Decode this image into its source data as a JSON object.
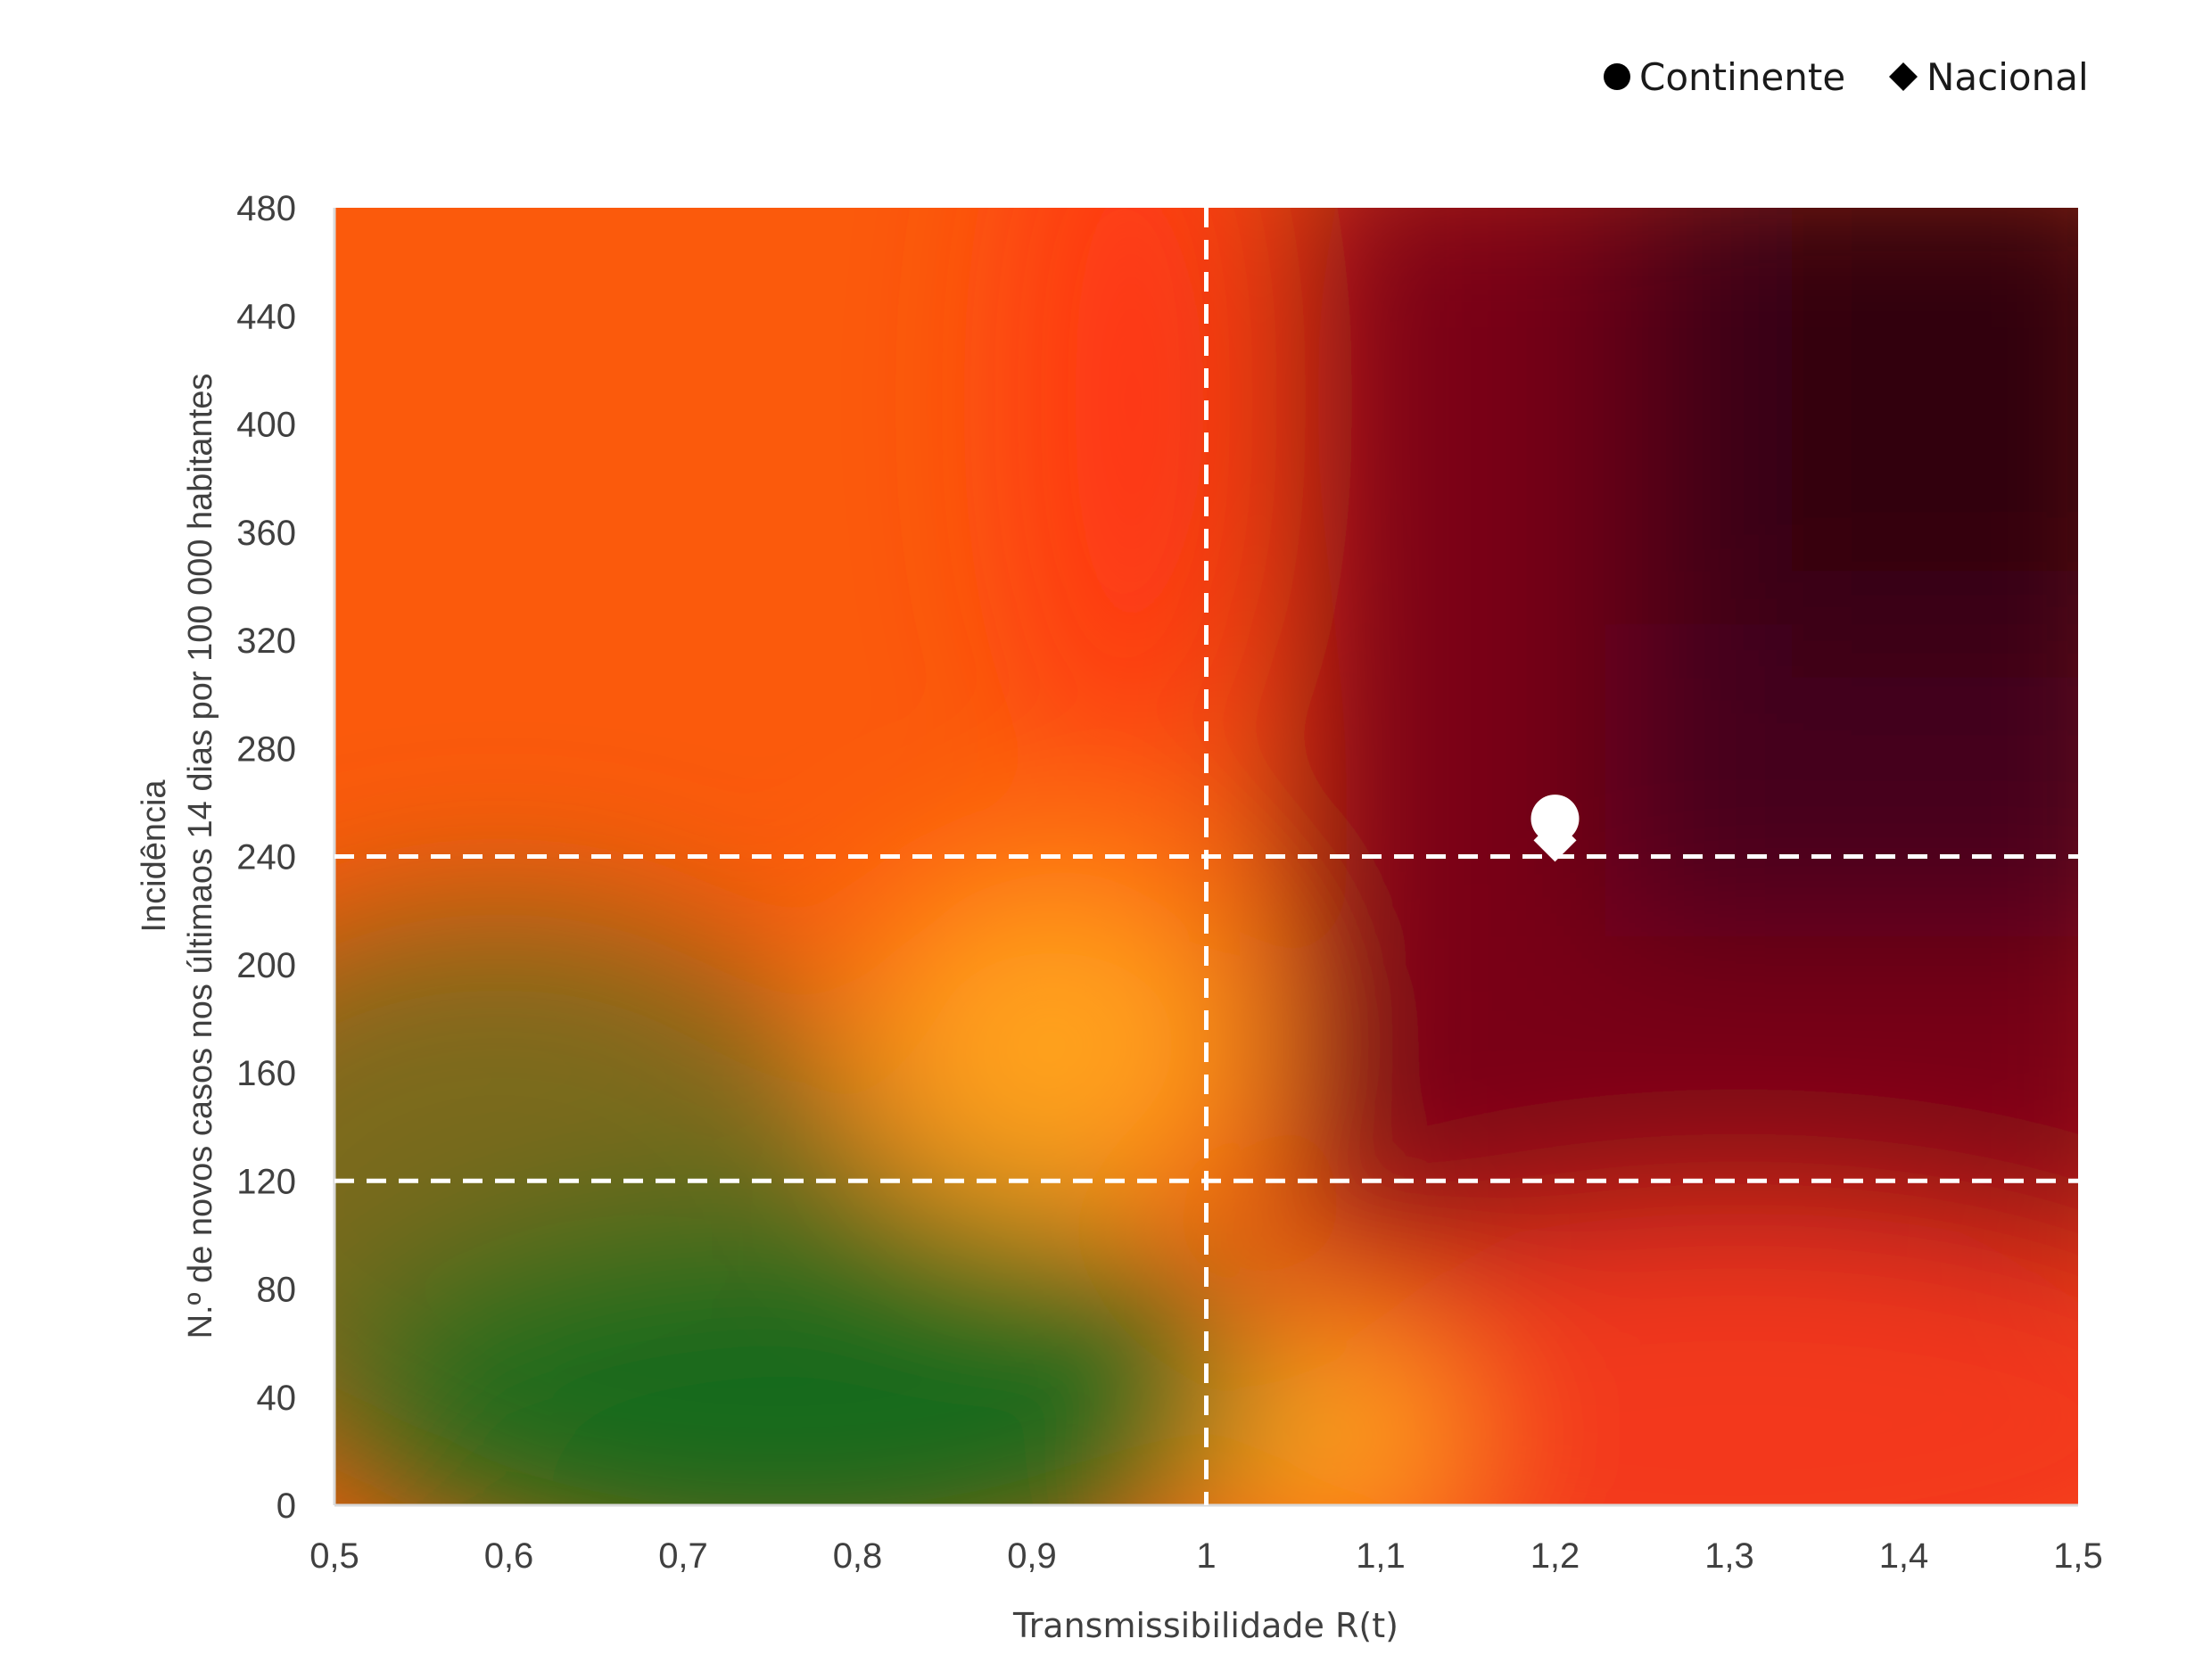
{
  "chart_data": {
    "type": "scatter",
    "title": "",
    "xlabel": "Transmissibilidade R(t)",
    "ylabel_lines": [
      "Incidência",
      "N.º de novos casos nos últimaos 14 dias por 100 000 habitantes"
    ],
    "xlim": [
      0.5,
      1.5
    ],
    "ylim": [
      0,
      480
    ],
    "x_ticks": [
      "0,5",
      "0,6",
      "0,7",
      "0,8",
      "0,9",
      "1",
      "1,1",
      "1,2",
      "1,3",
      "1,4",
      "1,5"
    ],
    "y_ticks": [
      "0",
      "40",
      "80",
      "120",
      "160",
      "200",
      "240",
      "280",
      "320",
      "360",
      "400",
      "440",
      "480"
    ],
    "reference_lines": {
      "x": [
        1.0
      ],
      "y": [
        120,
        240
      ],
      "style": "dashed",
      "color": "#ffffff"
    },
    "background": "heatmap gradient: green (low R, low incidence) through orange/red to dark maroon (high R, high incidence)",
    "legend_position": "top-right",
    "series": [
      {
        "name": "Continente",
        "marker": "circle",
        "points": [
          {
            "x": 1.2,
            "y": 254
          }
        ]
      },
      {
        "name": "Nacional",
        "marker": "diamond",
        "points": [
          {
            "x": 1.2,
            "y": 246
          }
        ]
      }
    ],
    "colors": {
      "green": "#136b1c",
      "orange": "#ff9b1c",
      "red_orange": "#ff3a12",
      "dark_red": "#7e0012",
      "maroon": "#330010",
      "marker": "#ffffff"
    }
  }
}
